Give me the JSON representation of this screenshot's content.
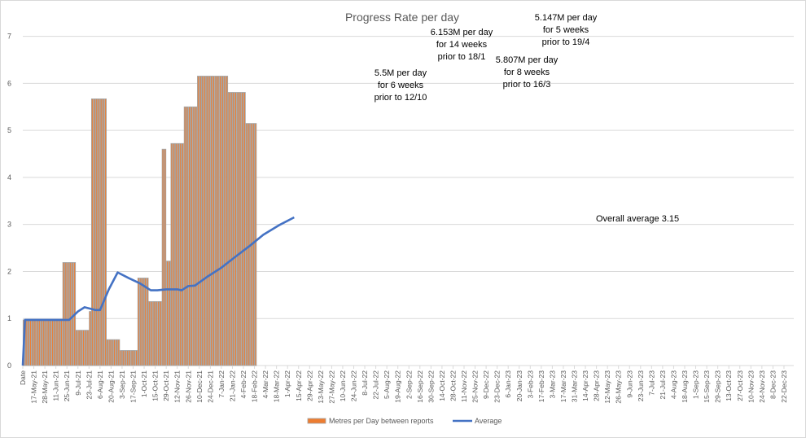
{
  "chart_data": {
    "type": "bar",
    "title": "Progress Rate per day",
    "ylim": [
      0,
      7
    ],
    "yticks": [
      0,
      1,
      2,
      3,
      4,
      5,
      6,
      7
    ],
    "x_labels": [
      "Date",
      "17-May-21",
      "28-May-21",
      "11-Jun-21",
      "25-Jun-21",
      "9-Jul-21",
      "23-Jul-21",
      "6-Aug-21",
      "20-Aug-21",
      "3-Sep-21",
      "17-Sep-21",
      "1-Oct-21",
      "15-Oct-21",
      "29-Oct-21",
      "12-Nov-21",
      "26-Nov-21",
      "10-Dec-21",
      "24-Dec-21",
      "7-Jan-22",
      "21-Jan-22",
      "4-Feb-22",
      "18-Feb-22",
      "4-Mar-22",
      "18-Mar-22",
      "1-Apr-22",
      "15-Apr-22",
      "29-Apr-22",
      "13-May-22",
      "27-May-22",
      "10-Jun-22",
      "24-Jun-22",
      "8-Jul-22",
      "22-Jul-22",
      "5-Aug-22",
      "19-Aug-22",
      "2-Sep-22",
      "16-Sep-22",
      "30-Sep-22",
      "14-Oct-22",
      "28-Oct-22",
      "11-Nov-22",
      "25-Nov-22",
      "9-Dec-22",
      "23-Dec-22",
      "6-Jan-23",
      "20-Jan-23",
      "3-Feb-23",
      "17-Feb-23",
      "3-Mar-23",
      "17-Mar-23",
      "31-Mar-23",
      "14-Apr-23",
      "28-Apr-23",
      "12-May-23",
      "26-May-23",
      "9-Jun-23",
      "23-Jun-23",
      "7-Jul-23",
      "21-Jul-23",
      "4-Aug-23",
      "18-Aug-23",
      "1-Sep-23",
      "15-Sep-23",
      "29-Sep-23",
      "13-Oct-23",
      "27-Oct-23",
      "10-Nov-23",
      "24-Nov-23",
      "8-Dec-23",
      "22-Dec-23"
    ],
    "bars": [
      {
        "start": 0,
        "end": 1,
        "value": 0.97
      },
      {
        "start": 1,
        "end": 18,
        "value": 0.97
      },
      {
        "start": 18,
        "end": 24,
        "value": 2.19
      },
      {
        "start": 24,
        "end": 30,
        "value": 0.75
      },
      {
        "start": 30,
        "end": 31,
        "value": 1.15
      },
      {
        "start": 31,
        "end": 38,
        "value": 5.67
      },
      {
        "start": 38,
        "end": 44,
        "value": 0.55
      },
      {
        "start": 44,
        "end": 52,
        "value": 0.32
      },
      {
        "start": 52,
        "end": 57,
        "value": 1.86
      },
      {
        "start": 57,
        "end": 63,
        "value": 1.36
      },
      {
        "start": 63,
        "end": 65,
        "value": 4.6
      },
      {
        "start": 65,
        "end": 67,
        "value": 2.22
      },
      {
        "start": 67,
        "end": 73,
        "value": 4.72
      },
      {
        "start": 73,
        "end": 79,
        "value": 5.5
      },
      {
        "start": 79,
        "end": 93,
        "value": 6.153
      },
      {
        "start": 93,
        "end": 101,
        "value": 5.807
      },
      {
        "start": 101,
        "end": 106,
        "value": 5.147
      }
    ],
    "average_line": [
      [
        0,
        0
      ],
      [
        1,
        0.97
      ],
      [
        10,
        0.97
      ],
      [
        19,
        0.97
      ],
      [
        21,
        0.97
      ],
      [
        25,
        1.15
      ],
      [
        28,
        1.24
      ],
      [
        33,
        1.18
      ],
      [
        35,
        1.18
      ],
      [
        39,
        1.62
      ],
      [
        43,
        1.98
      ],
      [
        48,
        1.86
      ],
      [
        53,
        1.75
      ],
      [
        56,
        1.66
      ],
      [
        58,
        1.6
      ],
      [
        61,
        1.6
      ],
      [
        65,
        1.62
      ],
      [
        70,
        1.62
      ],
      [
        72,
        1.6
      ],
      [
        75,
        1.69
      ],
      [
        78,
        1.7
      ],
      [
        84,
        1.9
      ],
      [
        90,
        2.08
      ],
      [
        96,
        2.3
      ],
      [
        103,
        2.55
      ],
      [
        109,
        2.78
      ],
      [
        116,
        2.98
      ],
      [
        123,
        3.15
      ]
    ],
    "series": [
      {
        "name": "Metres per Day between reports",
        "color": "#ED7D31",
        "accent": "#A5A5A5"
      },
      {
        "name": "Average",
        "color": "#4472C4"
      }
    ],
    "annotations": [
      {
        "lines": [
          "5.5M per day",
          "for 6 weeks",
          "prior to 12/10"
        ]
      },
      {
        "lines": [
          "6.153M per day",
          "for 14 weeks",
          "prior to 18/1"
        ]
      },
      {
        "lines": [
          "5.807M per day",
          "for 8 weeks",
          "prior to 16/3"
        ]
      },
      {
        "lines": [
          "5.147M per day",
          "for 5 weeks",
          "prior to 19/4"
        ]
      },
      {
        "lines": [
          "Overall average 3.15"
        ]
      }
    ]
  }
}
